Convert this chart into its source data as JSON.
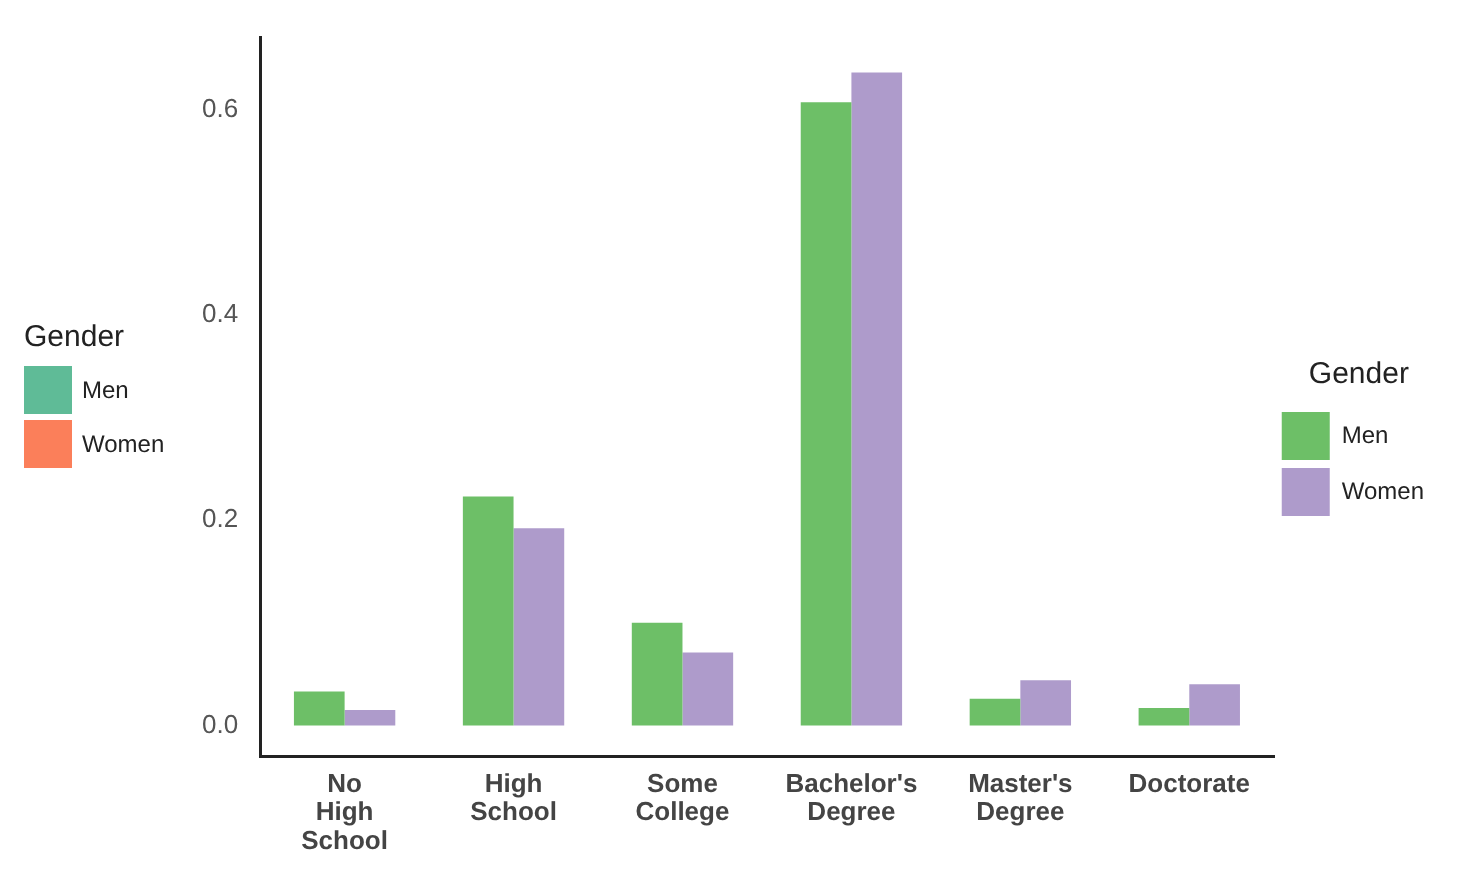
{
  "chart_data": {
    "type": "bar",
    "categories": [
      "No High School",
      "High School",
      "Some College",
      "Bachelor's Degree",
      "Master's Degree",
      "Doctorate"
    ],
    "series": [
      {
        "name": "Men",
        "color": "#6dbf67",
        "values": [
          0.033,
          0.223,
          0.1,
          0.607,
          0.026,
          0.017
        ]
      },
      {
        "name": "Women",
        "color": "#ae9bcb",
        "values": [
          0.015,
          0.192,
          0.071,
          0.636,
          0.044,
          0.04
        ]
      }
    ],
    "ylim": [
      -0.03,
      0.67
    ],
    "yticks": [
      {
        "value": 0,
        "label": "0.0"
      },
      {
        "value": 0.2,
        "label": "0.2"
      },
      {
        "value": 0.4,
        "label": "0.4"
      },
      {
        "value": 0.6,
        "label": "0.6"
      }
    ],
    "legend_title": "Gender",
    "legend": "right",
    "grid": false,
    "annotations": [
      "Gender",
      "Men",
      "Women"
    ]
  }
}
